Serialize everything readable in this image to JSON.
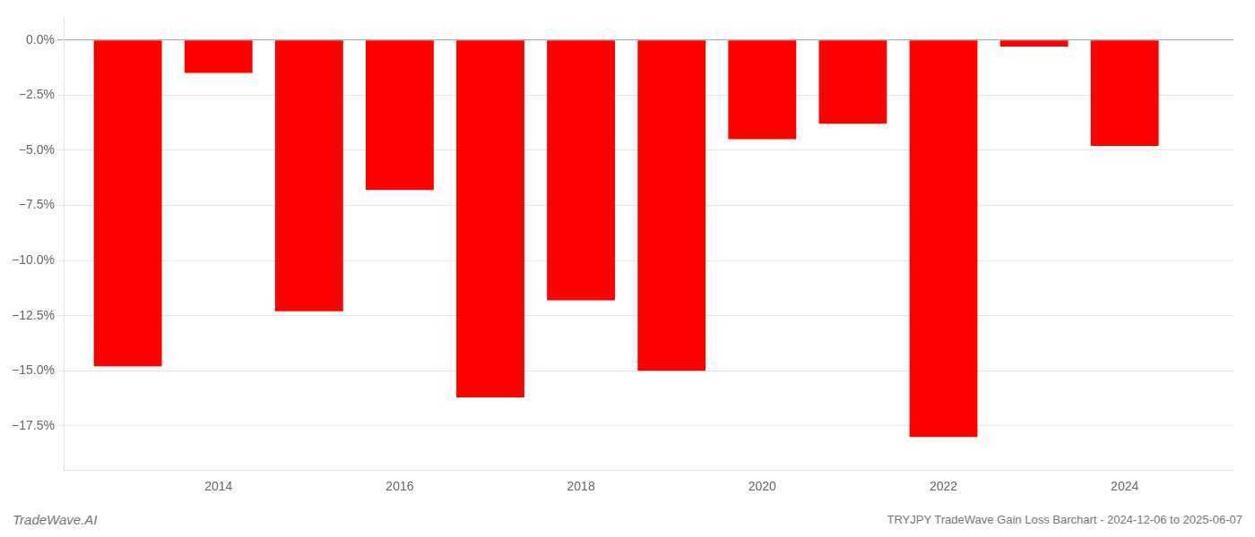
{
  "chart_data": {
    "type": "bar",
    "x": [
      2013,
      2014,
      2015,
      2016,
      2017,
      2018,
      2019,
      2020,
      2021,
      2022,
      2023,
      2024
    ],
    "values": [
      -14.8,
      -1.5,
      -12.3,
      -6.8,
      -16.2,
      -11.8,
      -15.0,
      -4.5,
      -3.8,
      -18.0,
      -0.3,
      -4.8
    ],
    "color": "#ff0000",
    "xlim": [
      2012.3,
      2025.2
    ],
    "xticks": [
      2014,
      2016,
      2018,
      2020,
      2022,
      2024
    ],
    "ylim": [
      -19.5,
      1.0
    ],
    "yticks": [
      {
        "value": 0.0,
        "label": "0.0%"
      },
      {
        "value": -2.5,
        "label": "−2.5%"
      },
      {
        "value": -5.0,
        "label": "−5.0%"
      },
      {
        "value": -7.5,
        "label": "−7.5%"
      },
      {
        "value": -10.0,
        "label": "−10.0%"
      },
      {
        "value": -12.5,
        "label": "−12.5%"
      },
      {
        "value": -15.0,
        "label": "−15.0%"
      },
      {
        "value": -17.5,
        "label": "−17.5%"
      }
    ],
    "grid": "y",
    "annotations": [
      "TradeWave.AI",
      "TRYJPY TradeWave Gain Loss Barchart - 2024-12-06 to 2025-06-07"
    ]
  }
}
